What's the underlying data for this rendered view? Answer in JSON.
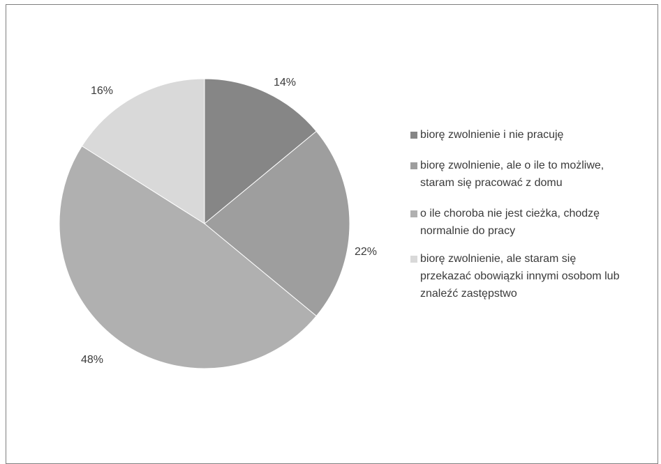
{
  "chart_data": {
    "type": "pie",
    "title": "",
    "start_angle_deg": 0,
    "direction": "clockwise",
    "legend_position": "right",
    "slices": [
      {
        "label": "biorę zwolnienie i nie pracuję",
        "value": 14,
        "display": "14%",
        "color": "#868686"
      },
      {
        "label": "biorę zwolnienie, ale o ile to możliwe, staram się pracować z domu",
        "value": 22,
        "display": "22%",
        "color": "#9e9e9e"
      },
      {
        "label": "o ile choroba nie jest cieżka, chodzę normalnie do pracy",
        "value": 48,
        "display": "48%",
        "color": "#b0b0b0"
      },
      {
        "label": "biorę zwolnienie, ale staram się przekazać obowiązki innymi osobom lub znaleźć zastępstwo",
        "value": 16,
        "display": "16%",
        "color": "#d9d9d9"
      }
    ]
  },
  "legend": {
    "items": [
      {
        "text": "biorę zwolnienie i nie pracuję",
        "color": "#868686"
      },
      {
        "text": "biorę zwolnienie, ale o ile to możliwe, staram się pracować z domu",
        "color": "#9e9e9e"
      },
      {
        "text": "o ile choroba nie jest cieżka, chodzę normalnie do pracy",
        "color": "#b0b0b0"
      },
      {
        "text": "biorę zwolnienie, ale staram się przekazać obowiązki innymi osobom lub znaleźć zastępstwo",
        "color": "#d9d9d9"
      }
    ]
  }
}
